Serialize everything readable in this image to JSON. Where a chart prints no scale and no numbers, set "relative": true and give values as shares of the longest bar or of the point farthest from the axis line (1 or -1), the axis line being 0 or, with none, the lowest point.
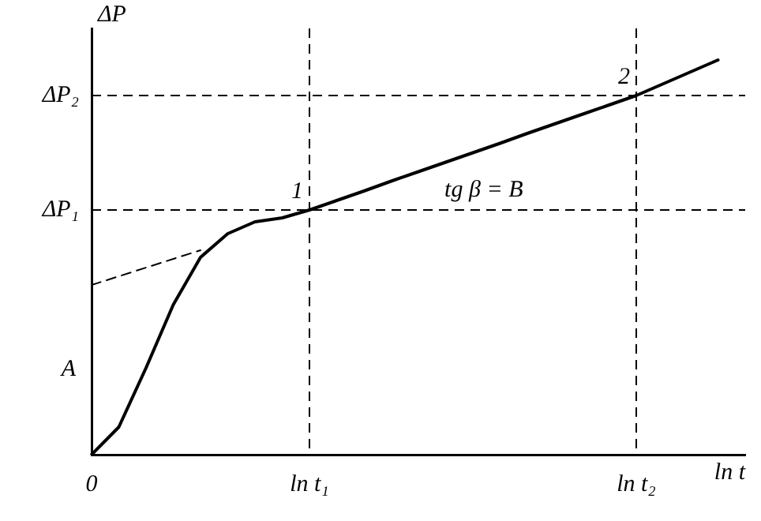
{
  "chart_data": {
    "type": "line",
    "relative": true,
    "xlabel": "ln t",
    "ylabel": "ΔP",
    "categories": [
      "0",
      null,
      null,
      null,
      null,
      null,
      null,
      null,
      "ln t₁",
      null,
      null,
      null,
      null,
      null,
      null,
      null,
      null,
      null,
      null,
      null,
      "ln t₂",
      null,
      null,
      null,
      null
    ],
    "series": [
      {
        "color": "#000000",
        "values": [
          0,
          0.07,
          0.22,
          0.38,
          0.5,
          0.56,
          0.59,
          0.6,
          0.62,
          0.644,
          0.668,
          0.693,
          0.717,
          0.741,
          0.765,
          0.789,
          0.814,
          0.838,
          0.862,
          0.886,
          0.91,
          0.94,
          0.97,
          1,
          null
        ]
      },
      {
        "color": "#000000",
        "line_style": "dashed",
        "values": [
          0.43,
          0.452,
          0.474,
          0.496,
          0.518,
          null,
          null,
          null,
          null,
          null,
          null,
          null,
          null,
          null,
          null,
          null,
          null,
          null,
          null,
          null,
          null,
          null,
          null,
          null,
          null
        ]
      }
    ],
    "ref_lines": [
      {
        "axis": "y",
        "value": 0.62,
        "label": "ΔP₁",
        "line_style": "dashed"
      },
      {
        "axis": "y",
        "value": 0.91,
        "label": "ΔP₂",
        "line_style": "dashed"
      },
      {
        "axis": "x",
        "value": "ln t₁",
        "line_style": "dashed"
      },
      {
        "axis": "x",
        "value": "ln t₂",
        "line_style": "dashed"
      }
    ],
    "annotations": [
      {
        "text": "1",
        "x": "ln t₁",
        "y": 0.62
      },
      {
        "text": "2",
        "x": "ln t₂",
        "y": 0.91
      },
      "tg β = B",
      "A"
    ],
    "grid": false,
    "legend": false,
    "marker": "none",
    "line_style": "solid"
  }
}
